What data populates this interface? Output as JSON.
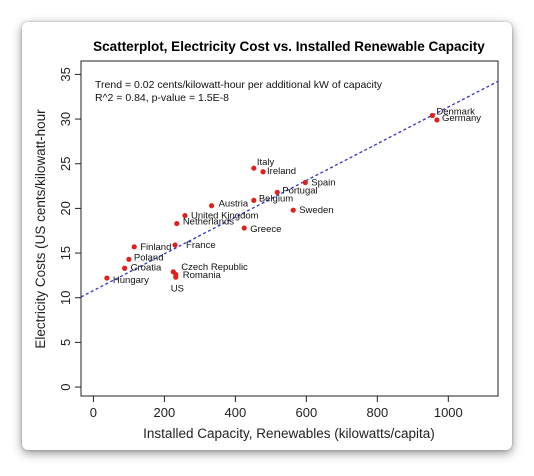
{
  "chart_data": {
    "type": "scatter",
    "title": "Scatterplot, Electricity Cost vs. Installed Renewable Capacity",
    "xlabel": "Installed Capacity, Renewables (kilowatts/capita)",
    "ylabel": "Electricity Costs (US cents/kilowatt-hour",
    "xlim": [
      -35,
      1140
    ],
    "ylim": [
      -1,
      36.5
    ],
    "xticks": [
      0,
      200,
      400,
      600,
      800,
      1000
    ],
    "yticks": [
      0,
      5,
      10,
      15,
      20,
      25,
      30,
      35
    ],
    "annotations": [
      "Trend = 0.02 cents/kilowatt-hour per additional kW of capacity",
      "R^2 = 0.84, p-value = 1.5E-8"
    ],
    "trend": {
      "intercept": 10.8,
      "slope": 0.02055
    },
    "point_color": "#e0201b",
    "trend_color": "#3333cc",
    "points": [
      {
        "label": "Denmark",
        "x": 955,
        "y": 30.4
      },
      {
        "label": "Germany",
        "x": 968,
        "y": 29.9
      },
      {
        "label": "Italy",
        "x": 452,
        "y": 24.5
      },
      {
        "label": "Ireland",
        "x": 478,
        "y": 24.1
      },
      {
        "label": "Spain",
        "x": 597,
        "y": 22.9
      },
      {
        "label": "Portugal",
        "x": 518,
        "y": 21.8
      },
      {
        "label": "Belgium",
        "x": 452,
        "y": 20.9
      },
      {
        "label": "Sweden",
        "x": 563,
        "y": 19.8
      },
      {
        "label": "Austria",
        "x": 333,
        "y": 20.3
      },
      {
        "label": "United Kingdom",
        "x": 258,
        "y": 19.2
      },
      {
        "label": "Netherlands",
        "x": 235,
        "y": 18.3
      },
      {
        "label": "Greece",
        "x": 425,
        "y": 17.8
      },
      {
        "label": "Finland",
        "x": 115,
        "y": 15.7
      },
      {
        "label": "France",
        "x": 230,
        "y": 15.9
      },
      {
        "label": "Poland",
        "x": 100,
        "y": 14.3
      },
      {
        "label": "Croatia",
        "x": 88,
        "y": 13.3
      },
      {
        "label": "Hungary",
        "x": 38,
        "y": 12.2
      },
      {
        "label": "Czech Republic",
        "x": 225,
        "y": 12.9
      },
      {
        "label": "Romania",
        "x": 232,
        "y": 12.3
      },
      {
        "label": "US",
        "x": 232,
        "y": 12.6
      }
    ]
  }
}
